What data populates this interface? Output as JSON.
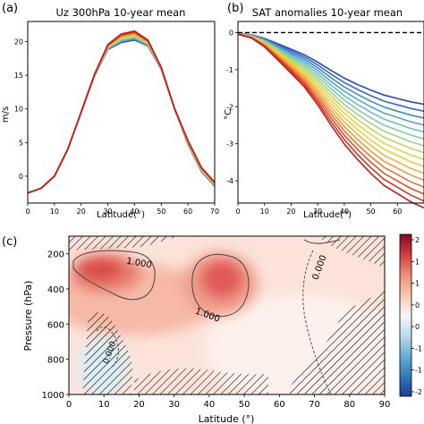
{
  "panel_labels": [
    "(a)",
    "(b)",
    "(c)"
  ],
  "chart_data": [
    {
      "type": "line",
      "panel": "(a)",
      "title": "Uz 300hPa 10-year mean",
      "xlabel": "Latitude(°)",
      "ylabel": "m/s",
      "xlim": [
        0,
        70
      ],
      "ylim": [
        -4,
        23
      ],
      "xticks": [
        "0",
        "10",
        "20",
        "30",
        "40",
        "50",
        "60",
        "70"
      ],
      "yticks": [
        "0",
        "5",
        "10",
        "15",
        "20"
      ],
      "x": [
        0,
        5,
        10,
        15,
        20,
        25,
        30,
        35,
        40,
        45,
        50,
        55,
        60,
        65,
        70
      ],
      "ensemble_members": 16,
      "base_values": [
        -2.5,
        -1.8,
        0.0,
        4.0,
        9.5,
        15.0,
        19.2,
        20.5,
        20.9,
        19.8,
        16.0,
        10.0,
        5.0,
        1.0,
        -1.2
      ],
      "color_ramp": [
        "#2c45c8",
        "#3f8fd0",
        "#6fc6c2",
        "#a9d96d",
        "#f2d438",
        "#f5a23a",
        "#e2552b",
        "#c41b1b"
      ]
    },
    {
      "type": "line",
      "panel": "(b)",
      "title": "SAT anomalies 10-year mean",
      "xlabel": "Latitude(°)",
      "ylabel": "°C",
      "xlim": [
        0,
        70
      ],
      "ylim": [
        -4.6,
        0.3
      ],
      "xticks": [
        "0",
        "10",
        "20",
        "30",
        "40",
        "50",
        "60"
      ],
      "yticks": [
        "0",
        "-1",
        "-2",
        "-3",
        "-4"
      ],
      "zero_line": true,
      "x": [
        0,
        5,
        10,
        15,
        20,
        25,
        30,
        35,
        40,
        45,
        50,
        55,
        60,
        65,
        70
      ],
      "ensemble_members": 16,
      "base_values": [
        -0.05,
        -0.15,
        -0.4,
        -0.75,
        -1.1,
        -1.45,
        -1.9,
        -2.4,
        -2.85,
        -3.2,
        -3.5,
        -3.75,
        -3.95,
        -4.15,
        -4.3
      ],
      "color_ramp": [
        "#2c45c8",
        "#3f8fd0",
        "#6fc6c2",
        "#a9d96d",
        "#f2d438",
        "#f5a23a",
        "#e2552b",
        "#c41b1b"
      ]
    },
    {
      "type": "heatmap",
      "panel": "(c)",
      "xlabel": "Latitude (°)",
      "ylabel": "Pressure (hPa)",
      "xlim": [
        0,
        90
      ],
      "ylim": [
        1000,
        100
      ],
      "xticks": [
        "0",
        "10",
        "20",
        "30",
        "40",
        "50",
        "60",
        "70",
        "80",
        "90"
      ],
      "yticks": [
        "200",
        "400",
        "600",
        "800",
        "1000"
      ],
      "colorbar_ticks": [
        "2",
        "1",
        "1",
        "0",
        "0",
        "-1",
        "-1",
        "-2"
      ],
      "colorbar_range": [
        -2,
        2
      ],
      "contour_labels": [
        "1.000",
        "1.000",
        "0.000",
        "0.000"
      ],
      "hatching": "stippled regions",
      "maxima": [
        {
          "lat": 8,
          "p": 190,
          "value": 1.6
        },
        {
          "lat": 43,
          "p": 260,
          "value": 1.9
        },
        {
          "lat": 10,
          "p": 850,
          "value": -0.3
        }
      ]
    }
  ]
}
